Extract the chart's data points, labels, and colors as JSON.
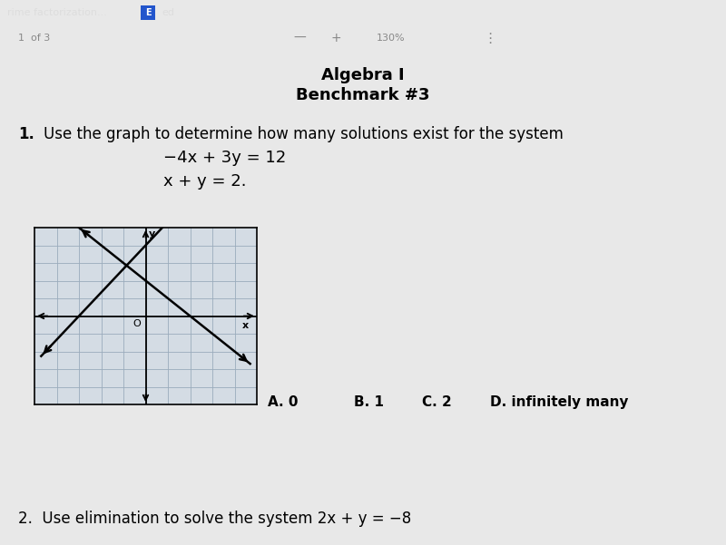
{
  "title1": "Algebra I",
  "title2": "Benchmark #3",
  "question1_label": "1.",
  "question1_text": "Use the graph to determine how many solutions exist for the system",
  "equation1": "−4x + 3y = 12",
  "equation2": "x + y = 2.",
  "main_bg": "#e8e8e8",
  "graph_bg": "#d4dce4",
  "graph_grid_color": "#9aabbc",
  "choices": [
    "A. 0",
    "B. 1",
    "C. 2",
    "D. infinitely many"
  ],
  "question2_text": "2.  Use elimination to solve the system 2x + y = −8",
  "header_bg": "#b0457a",
  "header_text1": "rime factorization...",
  "header_text2": "E",
  "header_text3": "ed",
  "toolbar_bg": "#1a1a1a",
  "subheader_text": "1  of 3",
  "subheader_zoom": "130%"
}
